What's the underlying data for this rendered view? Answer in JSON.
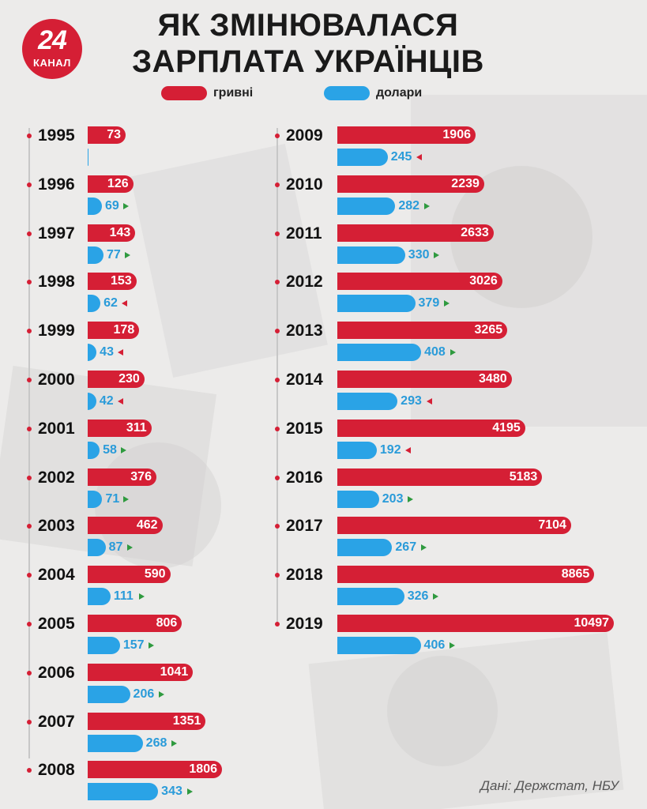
{
  "header": {
    "logo_number": "24",
    "logo_text": "КАНАЛ",
    "title_line1": "ЯК ЗМІНЮВАЛАСЯ",
    "title_line2": "ЗАРПЛАТА УКРАЇНЦІВ"
  },
  "colors": {
    "uah": "#d51f35",
    "usd": "#2aa3e6",
    "up_arrow": "#2f9a3f",
    "down_arrow": "#d51f35"
  },
  "source": "Дані: Держстат, НБУ",
  "chart_data": {
    "type": "bar",
    "title": "ЯК ЗМІНЮВАЛАСЯ ЗАРПЛАТА УКРАЇНЦІВ",
    "legend_position": "top-center",
    "categories": [
      "1995",
      "1996",
      "1997",
      "1998",
      "1999",
      "2000",
      "2001",
      "2002",
      "2003",
      "2004",
      "2005",
      "2006",
      "2007",
      "2008",
      "2009",
      "2010",
      "2011",
      "2012",
      "2013",
      "2014",
      "2015",
      "2016",
      "2017",
      "2018",
      "2019"
    ],
    "series": [
      {
        "name": "гривні",
        "color": "#d51f35",
        "values": [
          73,
          126,
          143,
          153,
          178,
          230,
          311,
          376,
          462,
          590,
          806,
          1041,
          1351,
          1806,
          1906,
          2239,
          2633,
          3026,
          3265,
          3480,
          4195,
          5183,
          7104,
          8865,
          10497
        ]
      },
      {
        "name": "долари",
        "color": "#2aa3e6",
        "values": [
          null,
          69,
          77,
          62,
          43,
          42,
          58,
          71,
          87,
          111,
          157,
          206,
          268,
          343,
          245,
          282,
          330,
          379,
          408,
          293,
          192,
          203,
          267,
          326,
          406
        ]
      }
    ],
    "usd_trend": [
      null,
      "up",
      "up",
      "down",
      "down",
      "down",
      "up",
      "up",
      "up",
      "up",
      "up",
      "up",
      "up",
      "up",
      "down",
      "up",
      "up",
      "up",
      "up",
      "down",
      "down",
      "up",
      "up",
      "up",
      "up"
    ]
  }
}
